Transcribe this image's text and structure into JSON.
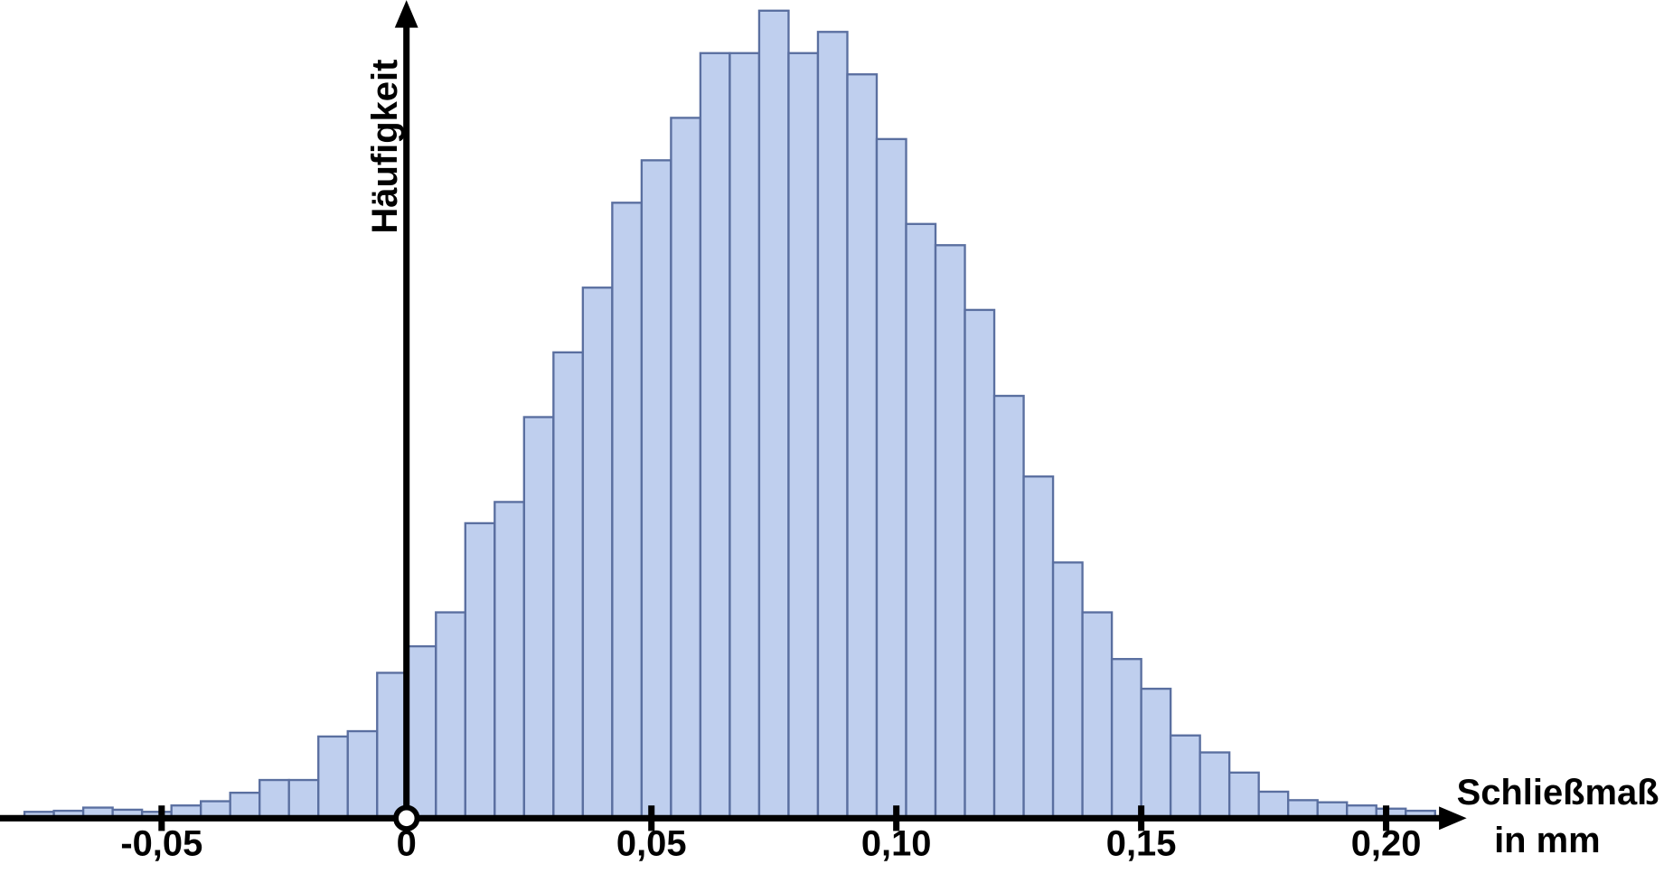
{
  "chart_data": {
    "type": "histogram",
    "ylabel": "Häufigkeit",
    "xlabel": [
      "Schließmaß",
      "in mm"
    ],
    "color": "#bfcfee",
    "edgecolor": "#5a6fa0",
    "bins": [
      -0.078,
      -0.072,
      -0.066,
      -0.06,
      -0.054,
      -0.048,
      -0.042,
      -0.036,
      -0.03,
      -0.024,
      -0.018,
      -0.012,
      -0.006,
      0,
      0.006,
      0.012,
      0.018,
      0.024,
      0.03,
      0.036,
      0.042,
      0.048,
      0.054,
      0.06,
      0.066,
      0.072,
      0.078,
      0.084,
      0.09,
      0.096,
      0.102,
      0.108,
      0.114,
      0.12,
      0.126,
      0.132,
      0.138,
      0.144,
      0.15,
      0.156,
      0.162,
      0.168,
      0.174,
      0.18,
      0.186,
      0.192,
      0.198,
      0.204,
      0.21
    ],
    "values": [
      6,
      7,
      10,
      8,
      6,
      12,
      16,
      24,
      36,
      36,
      77,
      82,
      137,
      162,
      194,
      278,
      298,
      378,
      439,
      500,
      580,
      620,
      660,
      721,
      721,
      761,
      721,
      741,
      701,
      640,
      560,
      540,
      479,
      398,
      322,
      241,
      194,
      150,
      122,
      78,
      62,
      43,
      25,
      17,
      15,
      12,
      9,
      7
    ],
    "xlim": [
      -0.083,
      0.216
    ],
    "ylim": [
      0,
      771
    ],
    "xticks": [
      {
        "value": -0.05,
        "label": "-0,05"
      },
      0,
      {
        "value": 0.05,
        "label": "0,05"
      },
      {
        "value": 0.1,
        "label": "0,10"
      },
      {
        "value": 0.15,
        "label": "0,15"
      },
      {
        "value": 0.2,
        "label": "0,20"
      }
    ]
  }
}
